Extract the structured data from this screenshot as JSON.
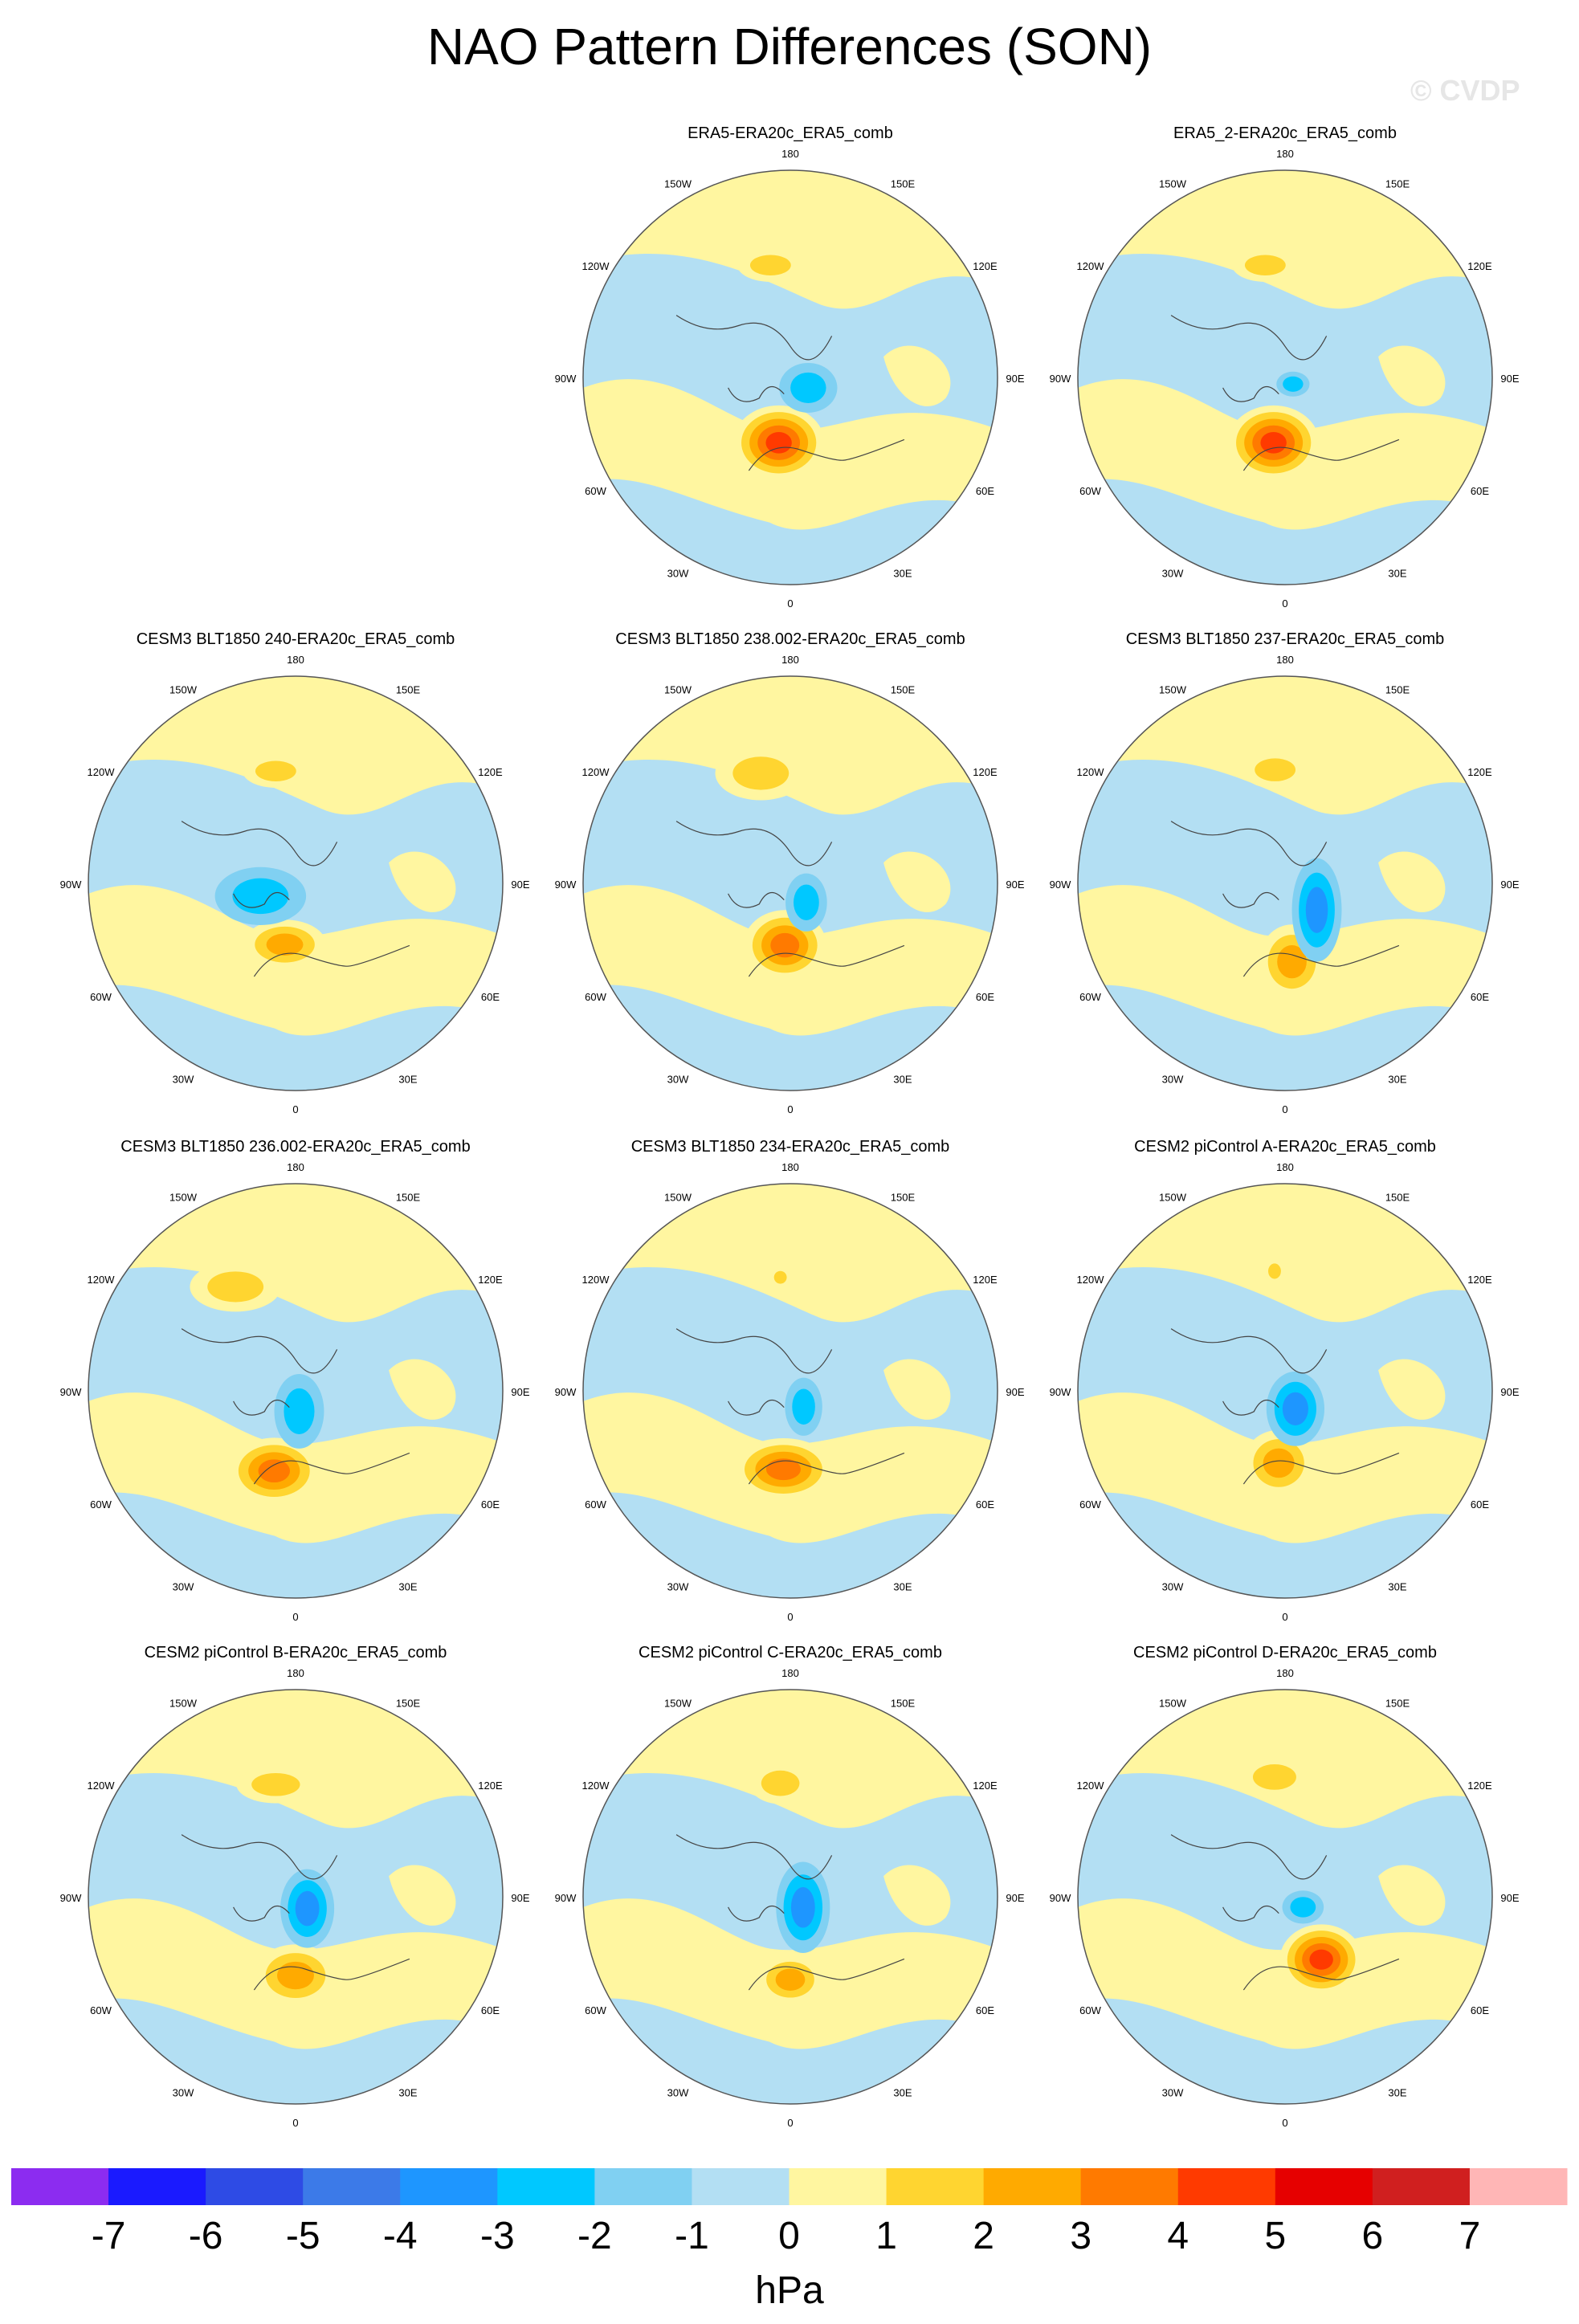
{
  "title": "NAO Pattern Differences (SON)",
  "watermark": "© CVDP",
  "colors": {
    "ocean_neg": "#b3dff3",
    "land_pos": "#fff6a0",
    "map_border": "#555555"
  },
  "chart_data": {
    "type": "map-panels",
    "projection": "north polar stereographic",
    "longitude_labels": [
      "180",
      "150E",
      "120E",
      "90E",
      "60E",
      "30E",
      "0",
      "30W",
      "60W",
      "90W",
      "120W",
      "150W"
    ],
    "panels": [
      {
        "title": "ERA5-ERA20c_ERA5_comb",
        "row": 0,
        "col": 1,
        "blobs": [
          {
            "lon": -10,
            "r": 0.32,
            "level": 5,
            "rx": 0.22,
            "ry": 0.18
          },
          {
            "lon": 60,
            "r": 0.1,
            "level": -2,
            "rx": 0.14,
            "ry": 0.12
          },
          {
            "lon": -170,
            "r": 0.55,
            "level": 2,
            "rx": 0.16,
            "ry": 0.08
          }
        ]
      },
      {
        "title": "ERA5_2-ERA20c_ERA5_comb",
        "row": 0,
        "col": 2,
        "blobs": [
          {
            "lon": -10,
            "r": 0.32,
            "level": 5,
            "rx": 0.22,
            "ry": 0.18
          },
          {
            "lon": 50,
            "r": 0.05,
            "level": -2,
            "rx": 0.08,
            "ry": 0.06
          },
          {
            "lon": -170,
            "r": 0.55,
            "level": 2,
            "rx": 0.16,
            "ry": 0.08
          }
        ]
      },
      {
        "title": "CESM3 BLT1850 240-ERA20c_ERA5_comb",
        "row": 1,
        "col": 0,
        "blobs": [
          {
            "lon": -10,
            "r": 0.3,
            "level": 3,
            "rx": 0.2,
            "ry": 0.12
          },
          {
            "lon": -70,
            "r": 0.18,
            "level": -2,
            "rx": 0.22,
            "ry": 0.14
          },
          {
            "lon": -170,
            "r": 0.55,
            "level": 2,
            "rx": 0.16,
            "ry": 0.08
          }
        ]
      },
      {
        "title": "CESM3 BLT1850 238.002-ERA20c_ERA5_comb",
        "row": 1,
        "col": 1,
        "blobs": [
          {
            "lon": -5,
            "r": 0.3,
            "level": 4,
            "rx": 0.2,
            "ry": 0.17
          },
          {
            "lon": 40,
            "r": 0.12,
            "level": -2,
            "rx": 0.1,
            "ry": 0.14
          },
          {
            "lon": -165,
            "r": 0.55,
            "level": 2,
            "rx": 0.22,
            "ry": 0.13
          }
        ]
      },
      {
        "title": "CESM3 BLT1850 237-ERA20c_ERA5_comb",
        "row": 1,
        "col": 2,
        "blobs": [
          {
            "lon": 5,
            "r": 0.38,
            "level": 3,
            "rx": 0.16,
            "ry": 0.18
          },
          {
            "lon": 50,
            "r": 0.2,
            "level": -3,
            "rx": 0.12,
            "ry": 0.25
          },
          {
            "lon": -175,
            "r": 0.55,
            "level": 2,
            "rx": 0.16,
            "ry": 0.09
          }
        ]
      },
      {
        "title": "CESM3 BLT1850 236.002-ERA20c_ERA5_comb",
        "row": 2,
        "col": 0,
        "blobs": [
          {
            "lon": -15,
            "r": 0.4,
            "level": 4,
            "rx": 0.22,
            "ry": 0.16
          },
          {
            "lon": 10,
            "r": 0.1,
            "level": -2,
            "rx": 0.12,
            "ry": 0.18
          },
          {
            "lon": -150,
            "r": 0.58,
            "level": 2,
            "rx": 0.22,
            "ry": 0.12
          }
        ]
      },
      {
        "title": "CESM3 BLT1850 234-ERA20c_ERA5_comb",
        "row": 2,
        "col": 1,
        "blobs": [
          {
            "lon": -5,
            "r": 0.38,
            "level": 4,
            "rx": 0.24,
            "ry": 0.15
          },
          {
            "lon": 40,
            "r": 0.1,
            "level": -2,
            "rx": 0.09,
            "ry": 0.14
          },
          {
            "lon": -175,
            "r": 0.55,
            "level": 2,
            "rx": 0.05,
            "ry": 0.05
          }
        ]
      },
      {
        "title": "CESM2 piControl A-ERA20c_ERA5_comb",
        "row": 2,
        "col": 2,
        "blobs": [
          {
            "lon": -5,
            "r": 0.35,
            "level": 3,
            "rx": 0.17,
            "ry": 0.16
          },
          {
            "lon": 30,
            "r": 0.1,
            "level": -3,
            "rx": 0.14,
            "ry": 0.18
          },
          {
            "lon": -175,
            "r": 0.58,
            "level": 2,
            "rx": 0.05,
            "ry": 0.06
          }
        ]
      },
      {
        "title": "CESM2 piControl B-ERA20c_ERA5_comb",
        "row": 3,
        "col": 0,
        "blobs": [
          {
            "lon": 0,
            "r": 0.38,
            "level": 3,
            "rx": 0.2,
            "ry": 0.15
          },
          {
            "lon": 45,
            "r": 0.08,
            "level": -3,
            "rx": 0.13,
            "ry": 0.19
          },
          {
            "lon": -170,
            "r": 0.55,
            "level": 2,
            "rx": 0.19,
            "ry": 0.09
          }
        ]
      },
      {
        "title": "CESM2 piControl C-ERA20c_ERA5_comb",
        "row": 3,
        "col": 1,
        "blobs": [
          {
            "lon": 0,
            "r": 0.4,
            "level": 3,
            "rx": 0.16,
            "ry": 0.12
          },
          {
            "lon": 50,
            "r": 0.08,
            "level": -3,
            "rx": 0.13,
            "ry": 0.22
          },
          {
            "lon": -175,
            "r": 0.55,
            "level": 2,
            "rx": 0.15,
            "ry": 0.1
          }
        ]
      },
      {
        "title": "CESM2 piControl D-ERA20c_ERA5_comb",
        "row": 3,
        "col": 2,
        "blobs": [
          {
            "lon": 30,
            "r": 0.35,
            "level": 5,
            "rx": 0.2,
            "ry": 0.17
          },
          {
            "lon": 60,
            "r": 0.1,
            "level": -2,
            "rx": 0.1,
            "ry": 0.08
          },
          {
            "lon": -175,
            "r": 0.58,
            "level": 2,
            "rx": 0.17,
            "ry": 0.1
          }
        ]
      }
    ],
    "colorbar": {
      "units": "hPa",
      "tick_labels": [
        "-7",
        "-6",
        "-5",
        "-4",
        "-3",
        "-2",
        "-1",
        "0",
        "1",
        "2",
        "3",
        "4",
        "5",
        "6",
        "7"
      ],
      "colors": [
        "#8c2cf0",
        "#1a1aff",
        "#2e4be5",
        "#3c7ae8",
        "#1e96ff",
        "#00c8ff",
        "#80d0f2",
        "#b3dff3",
        "#fff6a0",
        "#ffd530",
        "#ffaa00",
        "#ff7a00",
        "#ff3a00",
        "#e60000",
        "#d01f1f",
        "#ffb6b6"
      ]
    }
  }
}
